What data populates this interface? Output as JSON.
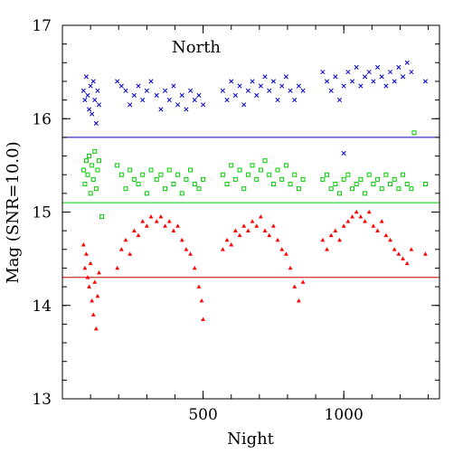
{
  "chart_data": {
    "type": "scatter",
    "title": "",
    "annotation": "North",
    "xlabel": "Night",
    "ylabel": "Mag (SNR=10.0)",
    "xlim": [
      0,
      1340
    ],
    "ylim": [
      13,
      17
    ],
    "x_ticks": [
      500,
      1000
    ],
    "x_tick_labels": [
      "500",
      "1000"
    ],
    "y_ticks": [
      13,
      14,
      15,
      16,
      17
    ],
    "y_tick_labels": [
      "13",
      "14",
      "15",
      "16",
      "17"
    ],
    "grid": false,
    "legend": "none",
    "reference_lines": [
      {
        "y": 15.8,
        "color": "#0000cc"
      },
      {
        "y": 15.1,
        "color": "#00cc00"
      },
      {
        "y": 14.3,
        "color": "#cc0000"
      }
    ],
    "series": [
      {
        "marker": "x",
        "color": "#0000cc",
        "points": [
          [
            75,
            16.3
          ],
          [
            80,
            16.2
          ],
          [
            85,
            16.45
          ],
          [
            90,
            16.25
          ],
          [
            95,
            16.1
          ],
          [
            100,
            16.35
          ],
          [
            105,
            16.05
          ],
          [
            110,
            16.4
          ],
          [
            115,
            16.2
          ],
          [
            120,
            15.95
          ],
          [
            125,
            16.3
          ],
          [
            130,
            16.15
          ],
          [
            195,
            16.4
          ],
          [
            210,
            16.35
          ],
          [
            225,
            16.3
          ],
          [
            240,
            16.15
          ],
          [
            255,
            16.25
          ],
          [
            270,
            16.35
          ],
          [
            285,
            16.2
          ],
          [
            300,
            16.3
          ],
          [
            315,
            16.4
          ],
          [
            335,
            16.25
          ],
          [
            350,
            16.1
          ],
          [
            365,
            16.3
          ],
          [
            380,
            16.2
          ],
          [
            395,
            16.35
          ],
          [
            410,
            16.15
          ],
          [
            425,
            16.25
          ],
          [
            440,
            16.1
          ],
          [
            455,
            16.3
          ],
          [
            470,
            16.2
          ],
          [
            485,
            16.25
          ],
          [
            500,
            16.15
          ],
          [
            570,
            16.3
          ],
          [
            585,
            16.2
          ],
          [
            600,
            16.4
          ],
          [
            615,
            16.25
          ],
          [
            630,
            16.35
          ],
          [
            645,
            16.15
          ],
          [
            660,
            16.3
          ],
          [
            675,
            16.4
          ],
          [
            690,
            16.25
          ],
          [
            705,
            16.35
          ],
          [
            720,
            16.45
          ],
          [
            735,
            16.3
          ],
          [
            750,
            16.4
          ],
          [
            765,
            16.2
          ],
          [
            780,
            16.35
          ],
          [
            795,
            16.45
          ],
          [
            810,
            16.3
          ],
          [
            825,
            16.2
          ],
          [
            840,
            16.35
          ],
          [
            855,
            16.3
          ],
          [
            925,
            16.5
          ],
          [
            940,
            16.4
          ],
          [
            955,
            16.3
          ],
          [
            970,
            16.45
          ],
          [
            985,
            16.2
          ],
          [
            1000,
            16.35
          ],
          [
            1015,
            16.5
          ],
          [
            1030,
            16.4
          ],
          [
            1045,
            16.55
          ],
          [
            1060,
            16.35
          ],
          [
            1075,
            16.45
          ],
          [
            1090,
            16.5
          ],
          [
            1105,
            16.4
          ],
          [
            1120,
            16.55
          ],
          [
            1135,
            16.45
          ],
          [
            1150,
            16.35
          ],
          [
            1165,
            16.5
          ],
          [
            1180,
            16.4
          ],
          [
            1195,
            16.55
          ],
          [
            1210,
            16.45
          ],
          [
            1225,
            16.6
          ],
          [
            1240,
            16.5
          ],
          [
            1290,
            16.4
          ],
          [
            1000,
            15.63
          ]
        ]
      },
      {
        "marker": "square",
        "color": "#00cc00",
        "points": [
          [
            75,
            15.45
          ],
          [
            80,
            15.3
          ],
          [
            85,
            15.55
          ],
          [
            90,
            15.4
          ],
          [
            95,
            15.6
          ],
          [
            100,
            15.2
          ],
          [
            105,
            15.5
          ],
          [
            110,
            15.35
          ],
          [
            115,
            15.65
          ],
          [
            120,
            15.25
          ],
          [
            125,
            15.45
          ],
          [
            130,
            15.55
          ],
          [
            195,
            15.5
          ],
          [
            210,
            15.4
          ],
          [
            225,
            15.25
          ],
          [
            240,
            15.45
          ],
          [
            255,
            15.35
          ],
          [
            270,
            15.3
          ],
          [
            285,
            15.4
          ],
          [
            300,
            15.2
          ],
          [
            315,
            15.45
          ],
          [
            335,
            15.35
          ],
          [
            350,
            15.4
          ],
          [
            365,
            15.25
          ],
          [
            380,
            15.45
          ],
          [
            395,
            15.3
          ],
          [
            410,
            15.4
          ],
          [
            425,
            15.2
          ],
          [
            440,
            15.35
          ],
          [
            455,
            15.45
          ],
          [
            470,
            15.3
          ],
          [
            485,
            15.25
          ],
          [
            500,
            15.35
          ],
          [
            570,
            15.4
          ],
          [
            585,
            15.3
          ],
          [
            600,
            15.5
          ],
          [
            615,
            15.35
          ],
          [
            630,
            15.45
          ],
          [
            645,
            15.25
          ],
          [
            660,
            15.4
          ],
          [
            675,
            15.5
          ],
          [
            690,
            15.35
          ],
          [
            705,
            15.45
          ],
          [
            720,
            15.55
          ],
          [
            735,
            15.4
          ],
          [
            750,
            15.3
          ],
          [
            765,
            15.45
          ],
          [
            780,
            15.35
          ],
          [
            795,
            15.5
          ],
          [
            810,
            15.3
          ],
          [
            825,
            15.4
          ],
          [
            840,
            15.25
          ],
          [
            855,
            15.35
          ],
          [
            925,
            15.35
          ],
          [
            940,
            15.4
          ],
          [
            955,
            15.25
          ],
          [
            970,
            15.3
          ],
          [
            985,
            15.2
          ],
          [
            1000,
            15.35
          ],
          [
            1015,
            15.4
          ],
          [
            1030,
            15.25
          ],
          [
            1045,
            15.3
          ],
          [
            1060,
            15.35
          ],
          [
            1075,
            15.2
          ],
          [
            1090,
            15.4
          ],
          [
            1105,
            15.3
          ],
          [
            1120,
            15.35
          ],
          [
            1135,
            15.25
          ],
          [
            1150,
            15.4
          ],
          [
            1165,
            15.3
          ],
          [
            1180,
            15.35
          ],
          [
            1195,
            15.25
          ],
          [
            1210,
            15.4
          ],
          [
            1225,
            15.3
          ],
          [
            1240,
            15.25
          ],
          [
            1290,
            15.3
          ],
          [
            1250,
            15.85
          ],
          [
            140,
            14.95
          ]
        ]
      },
      {
        "marker": "triangle",
        "color": "#ff0000",
        "points": [
          [
            75,
            14.65
          ],
          [
            80,
            14.4
          ],
          [
            85,
            14.55
          ],
          [
            90,
            14.3
          ],
          [
            95,
            14.2
          ],
          [
            100,
            14.45
          ],
          [
            105,
            14.05
          ],
          [
            110,
            13.9
          ],
          [
            115,
            14.25
          ],
          [
            120,
            13.75
          ],
          [
            125,
            14.1
          ],
          [
            130,
            14.35
          ],
          [
            195,
            14.4
          ],
          [
            210,
            14.6
          ],
          [
            225,
            14.7
          ],
          [
            240,
            14.55
          ],
          [
            255,
            14.8
          ],
          [
            270,
            14.75
          ],
          [
            285,
            14.9
          ],
          [
            300,
            14.85
          ],
          [
            315,
            14.95
          ],
          [
            335,
            14.9
          ],
          [
            350,
            14.95
          ],
          [
            365,
            14.85
          ],
          [
            380,
            14.9
          ],
          [
            395,
            14.8
          ],
          [
            410,
            14.85
          ],
          [
            425,
            14.7
          ],
          [
            440,
            14.6
          ],
          [
            455,
            14.55
          ],
          [
            470,
            14.4
          ],
          [
            485,
            14.2
          ],
          [
            495,
            14.05
          ],
          [
            500,
            13.85
          ],
          [
            570,
            14.6
          ],
          [
            585,
            14.7
          ],
          [
            600,
            14.65
          ],
          [
            615,
            14.8
          ],
          [
            630,
            14.75
          ],
          [
            645,
            14.85
          ],
          [
            660,
            14.8
          ],
          [
            675,
            14.9
          ],
          [
            690,
            14.85
          ],
          [
            705,
            14.95
          ],
          [
            720,
            14.8
          ],
          [
            735,
            14.75
          ],
          [
            750,
            14.85
          ],
          [
            765,
            14.7
          ],
          [
            780,
            14.6
          ],
          [
            795,
            14.55
          ],
          [
            810,
            14.4
          ],
          [
            825,
            14.2
          ],
          [
            840,
            14.05
          ],
          [
            855,
            14.25
          ],
          [
            925,
            14.7
          ],
          [
            940,
            14.6
          ],
          [
            955,
            14.75
          ],
          [
            970,
            14.8
          ],
          [
            985,
            14.7
          ],
          [
            1000,
            14.85
          ],
          [
            1015,
            14.9
          ],
          [
            1030,
            14.95
          ],
          [
            1045,
            15.0
          ],
          [
            1060,
            14.95
          ],
          [
            1075,
            14.9
          ],
          [
            1090,
            15.0
          ],
          [
            1105,
            14.85
          ],
          [
            1120,
            14.8
          ],
          [
            1135,
            14.9
          ],
          [
            1150,
            14.75
          ],
          [
            1165,
            14.7
          ],
          [
            1180,
            14.6
          ],
          [
            1195,
            14.55
          ],
          [
            1210,
            14.5
          ],
          [
            1225,
            14.45
          ],
          [
            1240,
            14.6
          ],
          [
            1290,
            14.55
          ]
        ]
      }
    ]
  }
}
